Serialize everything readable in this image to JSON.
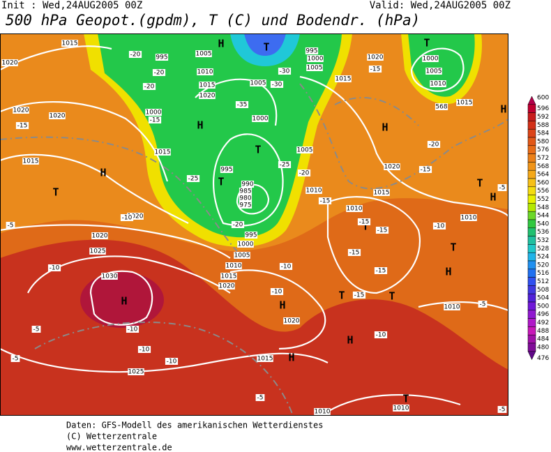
{
  "header": {
    "init": "Init : Wed,24AUG2005 00Z",
    "valid": "Valid: Wed,24AUG2005 00Z",
    "title": "500 hPa Geopot.(gpdm), T (C) und Bodendr. (hPa)"
  },
  "colorbar": {
    "labels": [
      "600",
      "596",
      "592",
      "588",
      "584",
      "580",
      "576",
      "572",
      "568",
      "564",
      "560",
      "556",
      "552",
      "548",
      "544",
      "540",
      "536",
      "532",
      "528",
      "524",
      "520",
      "516",
      "512",
      "508",
      "504",
      "500",
      "496",
      "492",
      "488",
      "484",
      "480",
      "476"
    ]
  },
  "map": {
    "labels": [
      "H",
      "H",
      "H",
      "H",
      "H",
      "H",
      "H",
      "H",
      "H",
      "H",
      "H",
      "T",
      "T",
      "T",
      "T",
      "T",
      "T",
      "T",
      "T",
      "T",
      "T",
      "T",
      "1015",
      "1020",
      "1020",
      "1020",
      "1015",
      "995",
      "1005",
      "1010",
      "1015",
      "1020",
      "1000",
      "1015",
      "995",
      "990",
      "985",
      "980",
      "975",
      "1000",
      "1005",
      "995",
      "1000",
      "1005",
      "1015",
      "1020",
      "1000",
      "1005",
      "1010",
      "1015",
      "568",
      "1005",
      "1010",
      "1015",
      "1020",
      "1010",
      "1010",
      "1020",
      "1025",
      "1030",
      "1020",
      "995",
      "1000",
      "1005",
      "1010",
      "1015",
      "1020",
      "1020",
      "1015",
      "1025",
      "1010",
      "1010",
      "1010",
      "-20",
      "-20",
      "-20",
      "-15",
      "-25",
      "-20",
      "-25",
      "-30",
      "-30",
      "-35",
      "-20",
      "-15",
      "-15",
      "-15",
      "-10",
      "-5",
      "-5",
      "-10",
      "-10",
      "-10",
      "-10",
      "-15",
      "-15",
      "-15",
      "-10",
      "-10",
      "-10",
      "-10",
      "-5",
      "-5",
      "-5",
      "-5",
      "-5",
      "-15",
      "-20",
      "-15",
      "-15"
    ]
  },
  "footer": [
    "Daten: GFS-Modell des amerikanischen Wetterdienstes",
    "(C) Wetterzentrale",
    "www.wetterzentrale.de"
  ]
}
